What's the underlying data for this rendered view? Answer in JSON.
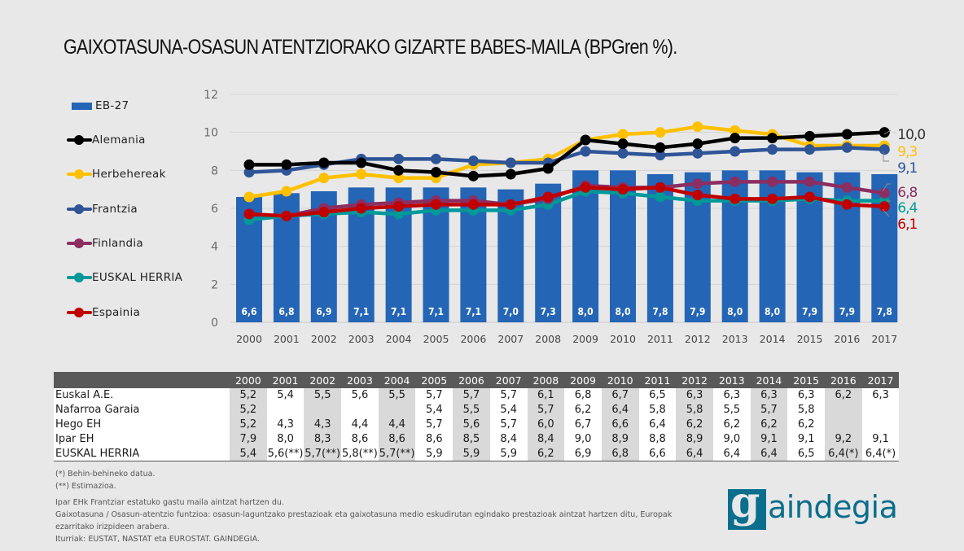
{
  "title": "GAIXOTASUNA-OSASUN ATENTZIORAKO GIZARTE BABES-MAILA (BPGren %).",
  "chart_data": {
    "type": "bar+line",
    "title": "GAIXOTASUNA-OSASUN ATENTZIORAKO GIZARTE BABES-MAILA (BPGren %).",
    "xlabel": "",
    "ylabel": "",
    "ylim": [
      0,
      12
    ],
    "yticks": [
      "0",
      "2",
      "4",
      "6",
      "8",
      "10",
      "12"
    ],
    "grid": true,
    "legend_position": "left",
    "categories": [
      "2000",
      "2001",
      "2002",
      "2003",
      "2004",
      "2005",
      "2006",
      "2007",
      "2008",
      "2009",
      "2010",
      "2011",
      "2012",
      "2013",
      "2014",
      "2015",
      "2016",
      "2017"
    ],
    "bar_series": {
      "name": "EB-27",
      "color": "#2565b5",
      "values": [
        6.6,
        6.8,
        6.9,
        7.1,
        7.1,
        7.1,
        7.1,
        7.0,
        7.3,
        8.0,
        8.0,
        7.8,
        7.9,
        8.0,
        8.0,
        7.9,
        7.9,
        7.8
      ],
      "labels": [
        "6,6",
        "6,8",
        "6,9",
        "7,1",
        "7,1",
        "7,1",
        "7,1",
        "7,0",
        "7,3",
        "8,0",
        "8,0",
        "7,8",
        "7,9",
        "8,0",
        "8,0",
        "7,9",
        "7,9",
        "7,8"
      ]
    },
    "series": [
      {
        "name": "Alemania",
        "color": "#000000",
        "values": [
          8.3,
          8.3,
          8.4,
          8.4,
          8.0,
          7.9,
          7.7,
          7.8,
          8.1,
          9.6,
          9.4,
          9.2,
          9.4,
          9.7,
          9.7,
          9.8,
          9.9,
          10.0
        ],
        "end_label": "10,0"
      },
      {
        "name": "Herbehereak",
        "color": "#ffc000",
        "values": [
          6.6,
          6.9,
          7.6,
          7.8,
          7.6,
          7.6,
          8.3,
          8.4,
          8.6,
          9.6,
          9.9,
          10.0,
          10.3,
          10.1,
          9.9,
          9.3,
          9.3,
          9.3
        ],
        "end_label": "9,3"
      },
      {
        "name": "Frantzia",
        "color": "#2f5597",
        "values": [
          7.9,
          8.0,
          8.3,
          8.6,
          8.6,
          8.6,
          8.5,
          8.4,
          8.4,
          9.0,
          8.9,
          8.8,
          8.9,
          9.0,
          9.1,
          9.1,
          9.2,
          9.1
        ],
        "end_label": "9,1"
      },
      {
        "name": "Finlandia",
        "color": "#8b2e62",
        "values": [
          null,
          5.6,
          6.0,
          6.2,
          6.3,
          6.4,
          6.4,
          6.2,
          6.5,
          7.2,
          7.1,
          7.1,
          7.3,
          7.4,
          7.4,
          7.4,
          7.1,
          6.8
        ],
        "end_label": "6,8"
      },
      {
        "name": "EUSKAL HERRIA",
        "color": "#009999",
        "values": [
          5.4,
          5.6,
          5.7,
          5.8,
          5.7,
          5.9,
          5.9,
          5.9,
          6.2,
          6.9,
          6.8,
          6.6,
          6.4,
          6.4,
          6.4,
          6.5,
          6.4,
          6.4
        ],
        "end_label": "6,4"
      },
      {
        "name": "Espainia",
        "color": "#c00000",
        "values": [
          5.7,
          5.6,
          5.8,
          6.0,
          6.1,
          6.2,
          6.2,
          6.2,
          6.6,
          7.1,
          7.0,
          7.1,
          6.7,
          6.5,
          6.5,
          6.6,
          6.2,
          6.1
        ],
        "end_label": "6,1"
      }
    ]
  },
  "table": {
    "years": [
      "2000",
      "2001",
      "2002",
      "2003",
      "2004",
      "2005",
      "2006",
      "2007",
      "2008",
      "2009",
      "2010",
      "2011",
      "2012",
      "2013",
      "2014",
      "2015",
      "2016",
      "2017"
    ],
    "rows": [
      {
        "label": "Euskal A.E.",
        "values": [
          "5,2",
          "5,4",
          "5,5",
          "5,6",
          "5,5",
          "5,7",
          "5,7",
          "5,7",
          "6,1",
          "6,8",
          "6,7",
          "6,5",
          "6,3",
          "6,3",
          "6,3",
          "6,3",
          "6,2",
          "6,3"
        ]
      },
      {
        "label": "Nafarroa Garaia",
        "values": [
          "5,2",
          "",
          "",
          "",
          "",
          "5,4",
          "5,5",
          "5,4",
          "5,7",
          "6,2",
          "6,4",
          "5,8",
          "5,8",
          "5,5",
          "5,7",
          "5,8",
          "",
          ""
        ]
      },
      {
        "label": "Hego EH",
        "values": [
          "5,2",
          "4,3",
          "4,3",
          "4,4",
          "4,4",
          "5,7",
          "5,6",
          "5,7",
          "6,0",
          "6,7",
          "6,6",
          "6,4",
          "6,2",
          "6,2",
          "6,2",
          "6,2",
          "",
          ""
        ]
      },
      {
        "label": "Ipar EH",
        "values": [
          "7,9",
          "8,0",
          "8,3",
          "8,6",
          "8,6",
          "8,6",
          "8,5",
          "8,4",
          "8,4",
          "9,0",
          "8,9",
          "8,8",
          "8,9",
          "9,0",
          "9,1",
          "9,1",
          "9,2",
          "9,1"
        ]
      },
      {
        "label": "EUSKAL HERRIA",
        "values": [
          "5,4",
          "5,6(**)",
          "5,7(**)",
          "5,8(**)",
          "5,7(**)",
          "5,9",
          "5,9",
          "5,9",
          "6,2",
          "6,9",
          "6,8",
          "6,6",
          "6,4",
          "6,4",
          "6,4",
          "6,5",
          "6,4(*)",
          "6,4(*)"
        ]
      }
    ]
  },
  "notes": {
    "n1": "(*) Behin-behineko datua.",
    "n2": "(**) Estimazioa.",
    "n3": "Ipar EHk Frantziar estatuko gastu maila aintzat hartzen du.",
    "n4": "Gaixotasuna / Osasun-atentzio funtzioa: osasun-laguntzako prestazioak eta gaixotasuna medio eskudirutan egindako prestazioak aintzat hartzen ditu, Europak",
    "n5": "ezarritako irizpideen arabera.",
    "n6": "Iturriak: EUSTAT, NASTAT eta EUROSTAT. GAINDEGIA."
  },
  "logo": {
    "mark": "g",
    "text": "aindegia",
    "full": "gaindegia",
    "color": "#0b6e8d"
  }
}
